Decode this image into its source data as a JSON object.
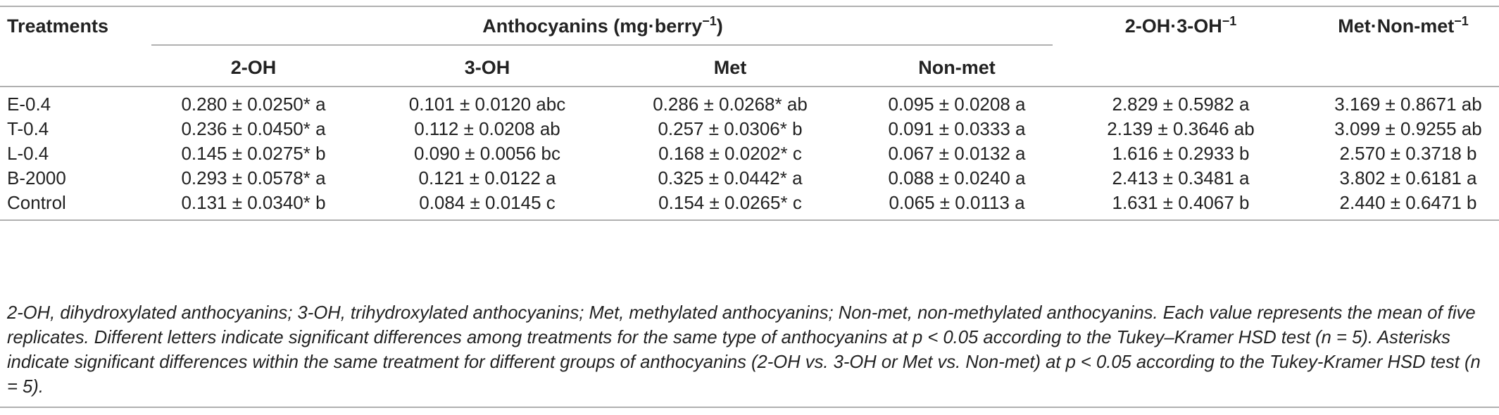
{
  "table": {
    "header": {
      "treatments": "Treatments",
      "anthocyanins": "Anthocyanins (mg·berry",
      "anthocyanins_sup": "−1",
      "anthocyanins_close": ")",
      "ratio1": "2-OH·3-OH",
      "ratio1_sup": "−1",
      "ratio2": "Met·Non-met",
      "ratio2_sup": "−1",
      "sub": [
        "2-OH",
        "3-OH",
        "Met",
        "Non-met"
      ]
    },
    "rows": [
      {
        "treatment": "E-0.4",
        "oh2": "0.280 ± 0.0250* a",
        "oh3": "0.101 ± 0.0120 abc",
        "met": "0.286 ± 0.0268* ab",
        "nonmet": "0.095 ± 0.0208 a",
        "r1": "2.829 ± 0.5982 a",
        "r2": "3.169 ± 0.8671 ab"
      },
      {
        "treatment": "T-0.4",
        "oh2": "0.236 ± 0.0450* a",
        "oh3": "0.112 ± 0.0208 ab",
        "met": "0.257 ± 0.0306* b",
        "nonmet": "0.091 ± 0.0333 a",
        "r1": "2.139 ± 0.3646 ab",
        "r2": "3.099 ± 0.9255 ab"
      },
      {
        "treatment": "L-0.4",
        "oh2": "0.145 ± 0.0275* b",
        "oh3": "0.090 ± 0.0056 bc",
        "met": "0.168 ± 0.0202* c",
        "nonmet": "0.067 ± 0.0132 a",
        "r1": "1.616 ± 0.2933 b",
        "r2": "2.570 ± 0.3718 b"
      },
      {
        "treatment": "B-2000",
        "oh2": "0.293 ± 0.0578* a",
        "oh3": "0.121 ± 0.0122 a",
        "met": "0.325 ± 0.0442* a",
        "nonmet": "0.088 ± 0.0240 a",
        "r1": "2.413 ± 0.3481 a",
        "r2": "3.802 ± 0.6181 a"
      },
      {
        "treatment": "Control",
        "oh2": "0.131 ± 0.0340* b",
        "oh3": "0.084 ± 0.0145 c",
        "met": "0.154 ± 0.0265* c",
        "nonmet": "0.065 ± 0.0113 a",
        "r1": "1.631 ± 0.4067 b",
        "r2": "2.440 ± 0.6471 b"
      }
    ],
    "footnote": "2-OH, dihydroxylated anthocyanins; 3-OH, trihydroxylated anthocyanins; Met, methylated anthocyanins; Non-met, non-methylated anthocyanins. Each value represents the mean of five replicates. Different letters indicate significant differences among treatments for the same type of anthocyanins at p < 0.05 according to the Tukey–Kramer HSD test (n = 5). Asterisks indicate significant differences within the same treatment for different groups of anthocyanins (2-OH vs. 3-OH or Met vs. Non-met) at p < 0.05 according to the Tukey-Kramer HSD test (n = 5)."
  }
}
